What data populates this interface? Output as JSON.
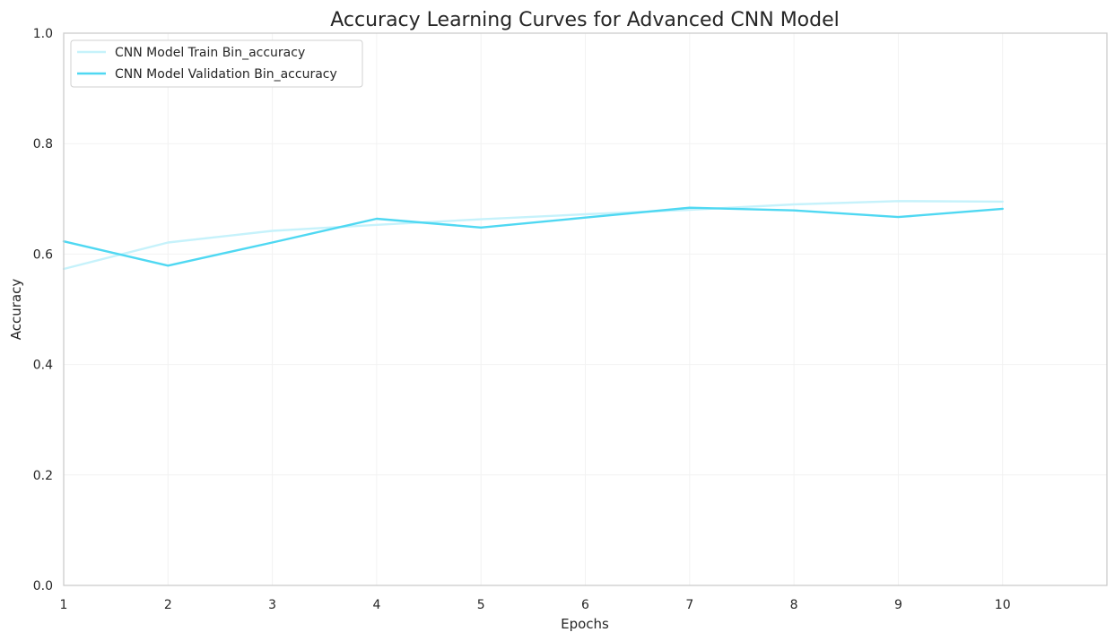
{
  "chart_data": {
    "type": "line",
    "title": "Accuracy Learning Curves for Advanced CNN Model",
    "xlabel": "Epochs",
    "ylabel": "Accuracy",
    "xlim": [
      1,
      11
    ],
    "ylim": [
      0,
      1
    ],
    "x": [
      1,
      2,
      3,
      4,
      5,
      6,
      7,
      8,
      9,
      10
    ],
    "xticks": [
      "1",
      "2",
      "3",
      "4",
      "5",
      "6",
      "7",
      "8",
      "9",
      "10"
    ],
    "yticks": [
      "0.0",
      "0.2",
      "0.4",
      "0.6",
      "0.8",
      "1.0"
    ],
    "grid": true,
    "legend_position": "top-left",
    "series": [
      {
        "name": "CNN Model Train Bin_accuracy",
        "color": "#c6f2fb",
        "values": [
          0.573,
          0.621,
          0.642,
          0.653,
          0.663,
          0.672,
          0.68,
          0.69,
          0.696,
          0.695
        ]
      },
      {
        "name": "CNN Model Validation Bin_accuracy",
        "color": "#4fd8f2",
        "values": [
          0.623,
          0.579,
          0.621,
          0.664,
          0.648,
          0.666,
          0.684,
          0.679,
          0.667,
          0.682
        ]
      }
    ]
  }
}
